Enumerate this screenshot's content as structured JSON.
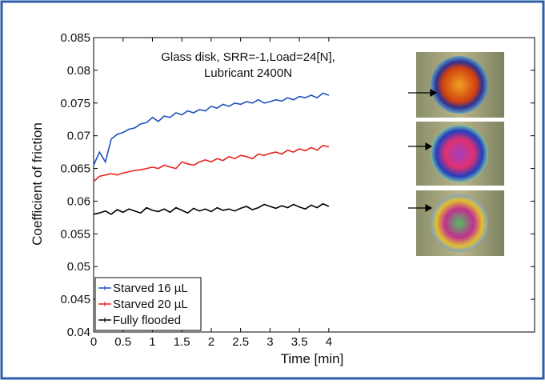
{
  "chart_data": {
    "type": "line",
    "annotation": [
      "Glass disk, SRR=-1,Load=24[N],",
      "Lubricant 2400N"
    ],
    "x_label": "Time [min]",
    "y_label": "Coefficient of friction",
    "x": [
      0,
      0.1,
      0.2,
      0.3,
      0.4,
      0.5,
      0.6,
      0.7,
      0.8,
      0.9,
      1,
      1.1,
      1.2,
      1.3,
      1.4,
      1.5,
      1.6,
      1.7,
      1.8,
      1.9,
      2,
      2.1,
      2.2,
      2.3,
      2.4,
      2.5,
      2.6,
      2.7,
      2.8,
      2.9,
      3,
      3.1,
      3.2,
      3.3,
      3.4,
      3.5,
      3.6,
      3.7,
      3.8,
      3.9,
      4
    ],
    "series": [
      {
        "name": "Starved 16 µL",
        "color": "#1f4fbf",
        "values": [
          0.0655,
          0.0675,
          0.066,
          0.0695,
          0.0702,
          0.0705,
          0.071,
          0.0712,
          0.0718,
          0.072,
          0.0728,
          0.0722,
          0.073,
          0.0728,
          0.0735,
          0.0732,
          0.0738,
          0.0735,
          0.074,
          0.0738,
          0.0745,
          0.0742,
          0.0748,
          0.0745,
          0.075,
          0.0748,
          0.0752,
          0.075,
          0.0755,
          0.075,
          0.0752,
          0.0755,
          0.0753,
          0.0758,
          0.0755,
          0.076,
          0.0758,
          0.0762,
          0.0758,
          0.0765,
          0.0762
        ]
      },
      {
        "name": "Starved 20 µL",
        "color": "#e8231f",
        "values": [
          0.063,
          0.0638,
          0.064,
          0.0642,
          0.064,
          0.0643,
          0.0645,
          0.0647,
          0.0648,
          0.065,
          0.0652,
          0.065,
          0.0655,
          0.0652,
          0.065,
          0.066,
          0.0657,
          0.0655,
          0.066,
          0.0663,
          0.066,
          0.0665,
          0.0662,
          0.0668,
          0.0665,
          0.067,
          0.0668,
          0.0665,
          0.0672,
          0.067,
          0.0673,
          0.0675,
          0.0672,
          0.0678,
          0.0675,
          0.068,
          0.0677,
          0.0682,
          0.0678,
          0.0685,
          0.0683
        ]
      },
      {
        "name": "Fully flooded",
        "color": "#000000",
        "values": [
          0.058,
          0.0582,
          0.0585,
          0.058,
          0.0587,
          0.0583,
          0.0588,
          0.0585,
          0.0582,
          0.059,
          0.0586,
          0.0584,
          0.0588,
          0.0583,
          0.059,
          0.0586,
          0.0582,
          0.0589,
          0.0585,
          0.0588,
          0.0584,
          0.059,
          0.0586,
          0.0588,
          0.0585,
          0.0589,
          0.0592,
          0.0587,
          0.059,
          0.0595,
          0.0592,
          0.0589,
          0.0593,
          0.059,
          0.0595,
          0.0591,
          0.0588,
          0.0594,
          0.059,
          0.0596,
          0.0592
        ]
      }
    ],
    "xlim": [
      0,
      7.5
    ],
    "xticks": [
      0,
      0.5,
      1,
      1.5,
      2,
      2.5,
      3,
      3.5,
      4
    ],
    "ylim": [
      0.04,
      0.085
    ],
    "yticks": [
      0.04,
      0.045,
      0.05,
      0.055,
      0.06,
      0.065,
      0.07,
      0.075,
      0.08,
      0.085
    ],
    "legend": "lower-left"
  }
}
